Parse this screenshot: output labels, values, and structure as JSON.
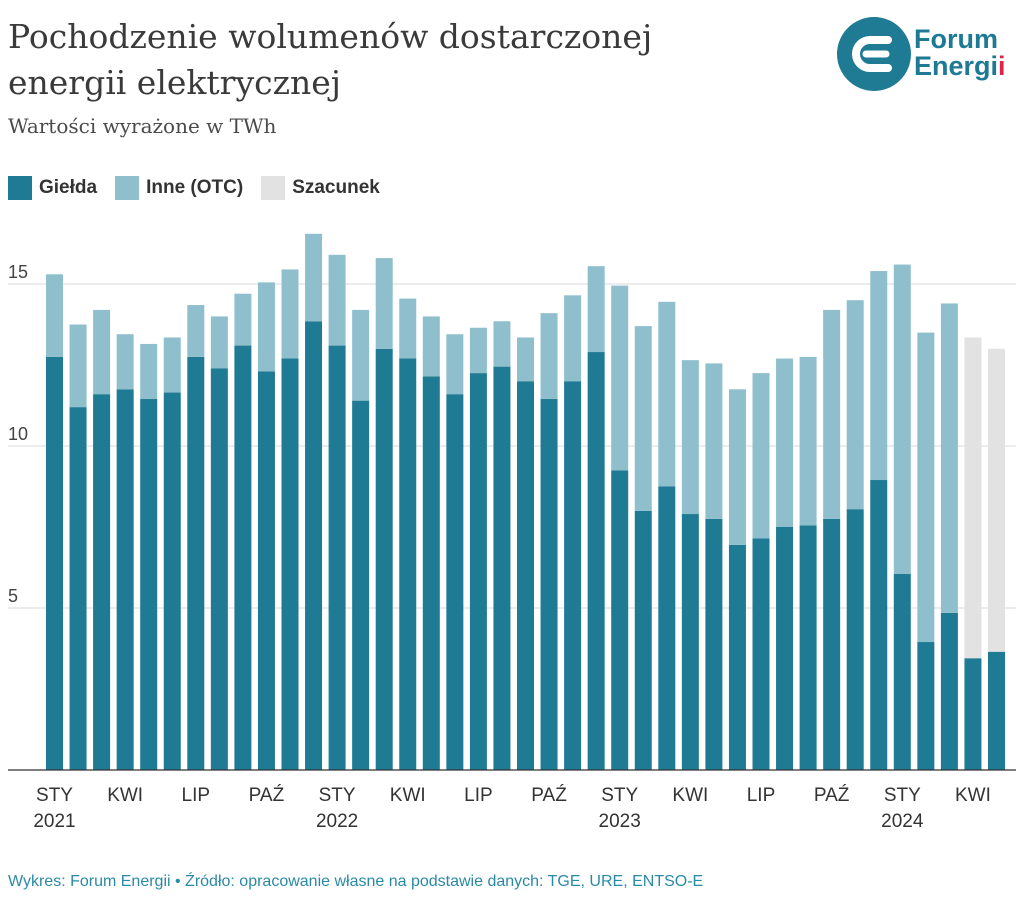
{
  "header": {
    "title": "Pochodzenie wolumenów dostarczonej energii elektrycznej",
    "subtitle": "Wartości wyrażone w TWh"
  },
  "logo": {
    "line1": "Forum",
    "line2": "Energi",
    "line2_accent": "i"
  },
  "footer": {
    "text": "Wykres: Forum Energii • Źródło: opracowanie własne na podstawie danych: TGE, URE, ENTSO-E"
  },
  "colors": {
    "gielda": "#1f7a94",
    "inne": "#8fbfcc",
    "szacunek": "#e2e2e2",
    "grid": "#d9d9d9",
    "axis": "#333333"
  },
  "chart_data": {
    "type": "bar",
    "stacked": true,
    "ylim": [
      0,
      17
    ],
    "yticks": [
      5,
      10,
      15
    ],
    "grid": true,
    "legend_position": "top-left",
    "series_names": [
      "Giełda",
      "Inne (OTC)",
      "Szacunek"
    ],
    "x_tick_labels": [
      {
        "index": 0,
        "label": "STY",
        "year": "2021"
      },
      {
        "index": 3,
        "label": "KWI",
        "year": ""
      },
      {
        "index": 6,
        "label": "LIP",
        "year": ""
      },
      {
        "index": 9,
        "label": "PAŹ",
        "year": ""
      },
      {
        "index": 12,
        "label": "STY",
        "year": "2022"
      },
      {
        "index": 15,
        "label": "KWI",
        "year": ""
      },
      {
        "index": 18,
        "label": "LIP",
        "year": ""
      },
      {
        "index": 21,
        "label": "PAŹ",
        "year": ""
      },
      {
        "index": 24,
        "label": "STY",
        "year": "2023"
      },
      {
        "index": 27,
        "label": "KWI",
        "year": ""
      },
      {
        "index": 30,
        "label": "LIP",
        "year": ""
      },
      {
        "index": 33,
        "label": "PAŹ",
        "year": ""
      },
      {
        "index": 36,
        "label": "STY",
        "year": "2024"
      },
      {
        "index": 39,
        "label": "KWI",
        "year": ""
      }
    ],
    "gielda": [
      12.75,
      11.2,
      11.6,
      11.75,
      11.45,
      11.65,
      12.75,
      12.4,
      13.1,
      12.3,
      12.7,
      13.85,
      13.1,
      11.4,
      13.0,
      12.7,
      12.15,
      11.6,
      12.25,
      12.45,
      12.0,
      11.45,
      12.0,
      12.9,
      9.25,
      8.0,
      8.75,
      7.9,
      7.75,
      6.95,
      7.15,
      7.5,
      7.55,
      7.75,
      8.05,
      8.95,
      6.05,
      3.95,
      4.85,
      3.45,
      3.65
    ],
    "inne": [
      2.55,
      2.55,
      2.6,
      1.7,
      1.7,
      1.7,
      1.6,
      1.6,
      1.6,
      2.75,
      2.75,
      2.7,
      2.8,
      2.8,
      2.8,
      1.85,
      1.85,
      1.85,
      1.4,
      1.4,
      1.35,
      2.65,
      2.65,
      2.65,
      5.7,
      5.7,
      5.7,
      4.75,
      4.8,
      4.8,
      5.1,
      5.2,
      5.2,
      6.45,
      6.45,
      6.45,
      9.55,
      9.55,
      9.55,
      0,
      0
    ],
    "szacunek": [
      0,
      0,
      0,
      0,
      0,
      0,
      0,
      0,
      0,
      0,
      0,
      0,
      0,
      0,
      0,
      0,
      0,
      0,
      0,
      0,
      0,
      0,
      0,
      0,
      0,
      0,
      0,
      0,
      0,
      0,
      0,
      0,
      0,
      0,
      0,
      0,
      0,
      0,
      0,
      9.9,
      9.35
    ]
  }
}
